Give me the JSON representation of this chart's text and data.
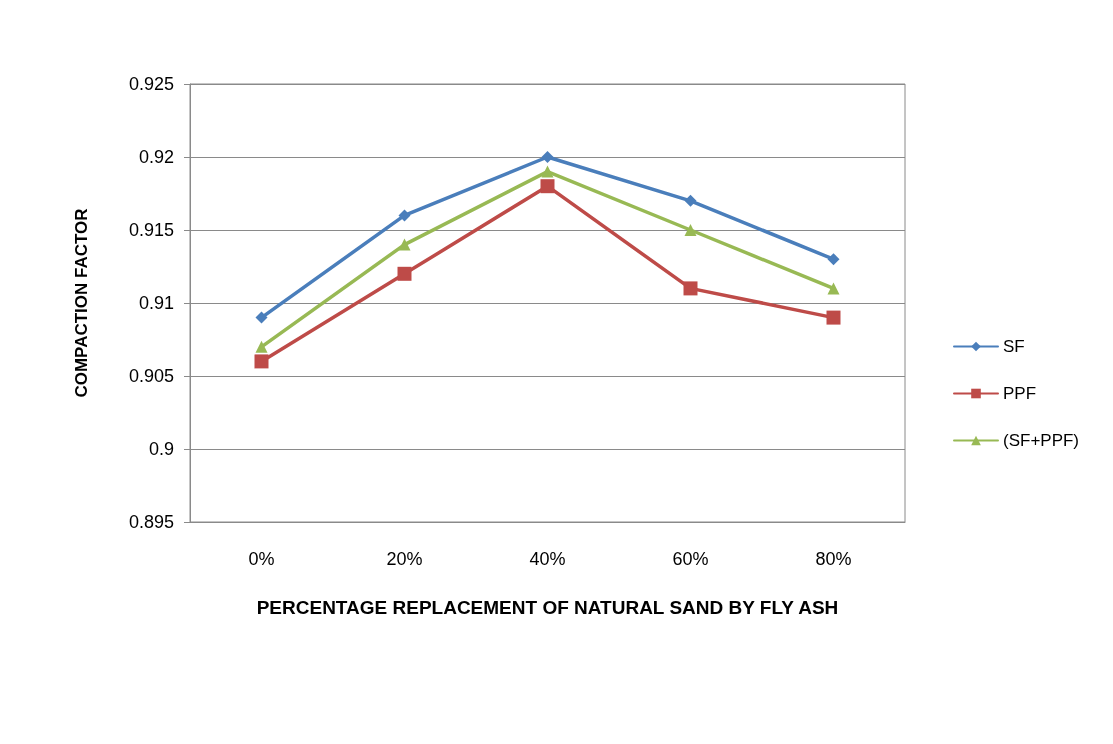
{
  "chart_data": {
    "type": "line",
    "xlabel": "PERCENTAGE REPLACEMENT OF NATURAL SAND BY FLY ASH",
    "ylabel": "COMPACTION FACTOR",
    "categories": [
      "0%",
      "20%",
      "40%",
      "60%",
      "80%"
    ],
    "series": [
      {
        "name": "SF",
        "color": "#4a7ebb",
        "marker": "diamond",
        "values": [
          0.909,
          0.916,
          0.92,
          0.917,
          0.913
        ]
      },
      {
        "name": "PPF",
        "color": "#be4b48",
        "marker": "square",
        "values": [
          0.906,
          0.912,
          0.918,
          0.911,
          0.909
        ]
      },
      {
        "name": "(SF+PPF)",
        "color": "#98b954",
        "marker": "triangle",
        "values": [
          0.907,
          0.914,
          0.919,
          0.915,
          0.911
        ]
      }
    ],
    "ylim": [
      0.895,
      0.925
    ],
    "yticks": [
      0.895,
      0.9,
      0.905,
      0.91,
      0.915,
      0.92,
      0.925
    ],
    "grid": "y",
    "legend": "right"
  }
}
